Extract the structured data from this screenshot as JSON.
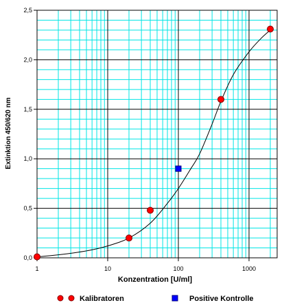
{
  "chart_data": {
    "type": "scatter",
    "xscale": "log",
    "xlim": [
      1,
      2500
    ],
    "ylim": [
      0,
      2.5
    ],
    "xticks": [
      {
        "value": 1,
        "label": "1"
      },
      {
        "value": 10,
        "label": "10"
      },
      {
        "value": 100,
        "label": "100"
      },
      {
        "value": 1000,
        "label": "1000"
      }
    ],
    "yticks": [
      {
        "value": 0,
        "label": "0,0"
      },
      {
        "value": 0.5,
        "label": "0,5"
      },
      {
        "value": 1.0,
        "label": "1,0"
      },
      {
        "value": 1.5,
        "label": "1,5"
      },
      {
        "value": 2.0,
        "label": "2,0"
      },
      {
        "value": 2.5,
        "label": "2,5"
      }
    ],
    "xlabel": "Konzentration [U/ml]",
    "ylabel": "Extinktion 450/620 nm",
    "grid": true,
    "legend_position": "bottom",
    "series": [
      {
        "name": "Kalibratoren",
        "marker": "circle",
        "color": "#ff0000",
        "x": [
          1,
          20,
          40,
          400,
          2000
        ],
        "y": [
          0.01,
          0.2,
          0.48,
          1.6,
          2.31
        ]
      },
      {
        "name": "Positive Kontrolle",
        "marker": "square",
        "color": "#0000ff",
        "x": [
          100
        ],
        "y": [
          0.9
        ]
      }
    ],
    "fit_curve": {
      "color": "#000000",
      "x": [
        1,
        2,
        5,
        10,
        20,
        40,
        70,
        100,
        150,
        200,
        300,
        400,
        600,
        1000,
        1500,
        2000
      ],
      "y": [
        0.01,
        0.03,
        0.07,
        0.12,
        0.2,
        0.35,
        0.55,
        0.7,
        0.9,
        1.05,
        1.35,
        1.58,
        1.85,
        2.08,
        2.22,
        2.3
      ]
    }
  },
  "colors": {
    "minor_grid": "#00e5e5",
    "major_grid": "#000000"
  }
}
